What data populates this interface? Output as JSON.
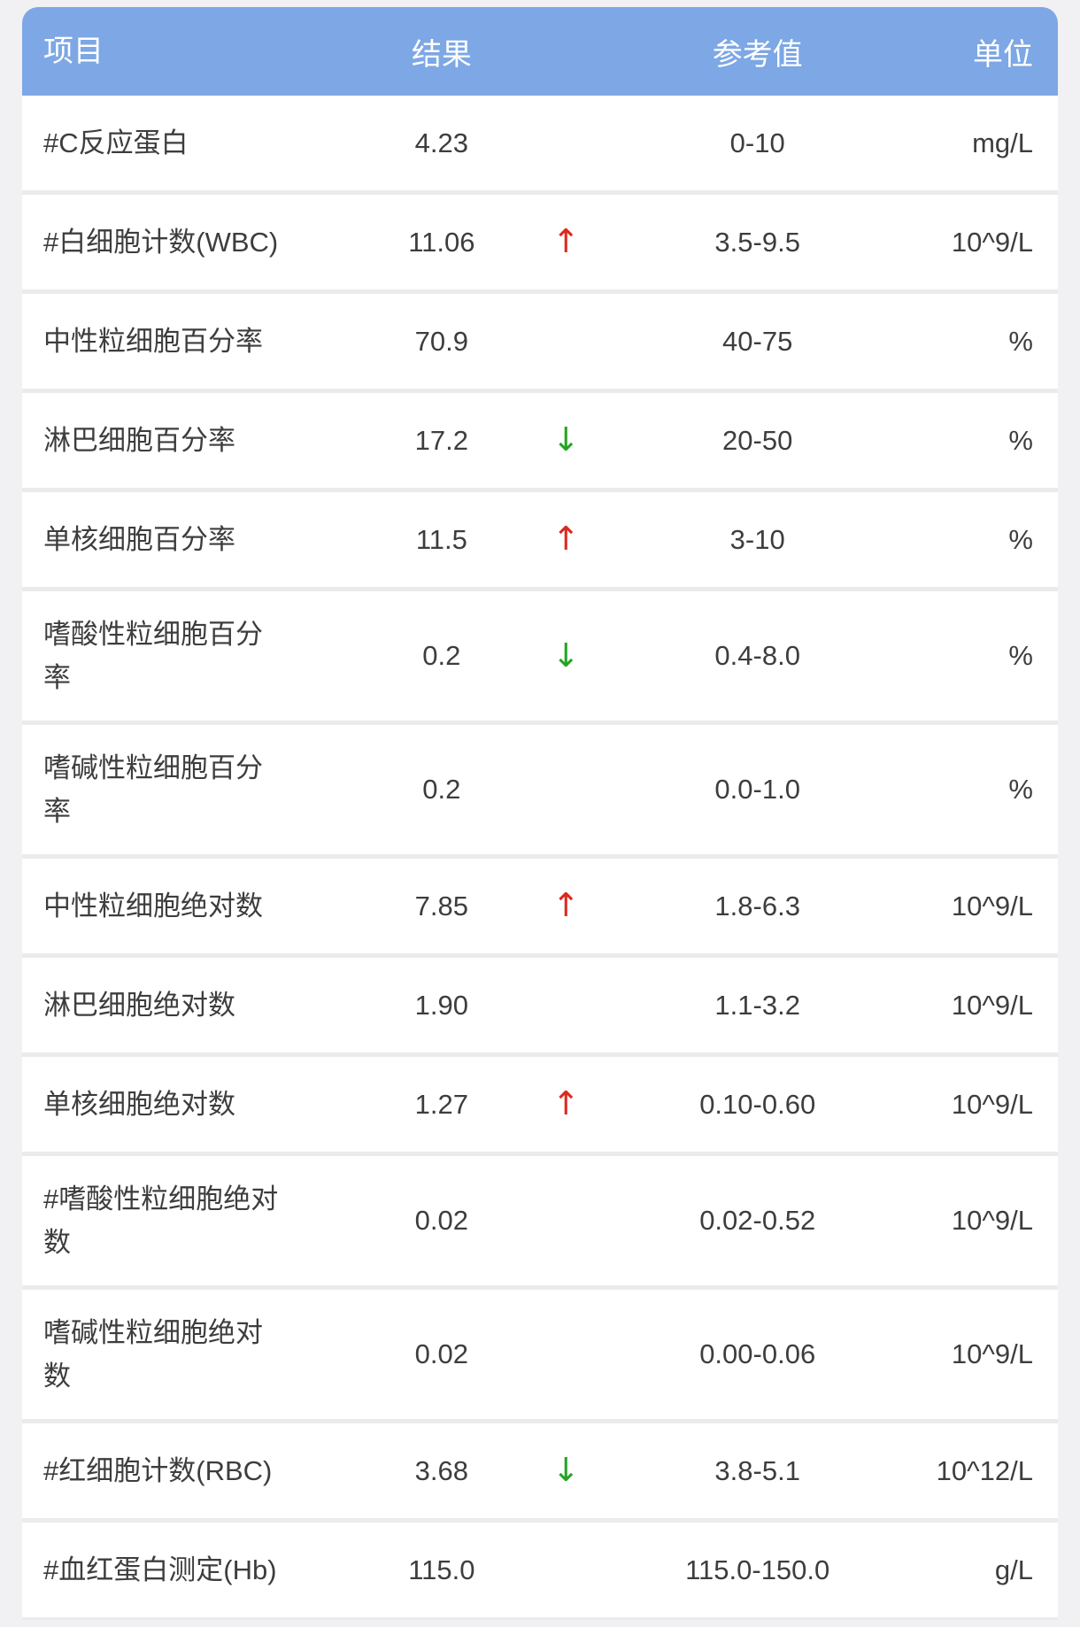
{
  "colors": {
    "header_bg": "#7da7e5",
    "header_text": "#ffffff",
    "row_text": "#3d3d3d",
    "divider": "#ebebeb",
    "up": "#dc291e",
    "down": "#23a523"
  },
  "icons": {
    "up": "↑",
    "down": "↓"
  },
  "table": {
    "columns": {
      "item": "项目",
      "result": "结果",
      "reference": "参考值",
      "unit": "单位"
    },
    "rows": [
      {
        "item": "#C反应蛋白",
        "result": "4.23",
        "flag": "",
        "reference": "0-10",
        "unit": "mg/L"
      },
      {
        "item": "#白细胞计数(WBC)",
        "result": "11.06",
        "flag": "up",
        "reference": "3.5-9.5",
        "unit": "10^9/L"
      },
      {
        "item": "中性粒细胞百分率",
        "result": "70.9",
        "flag": "",
        "reference": "40-75",
        "unit": "%"
      },
      {
        "item": "淋巴细胞百分率",
        "result": "17.2",
        "flag": "down",
        "reference": "20-50",
        "unit": "%"
      },
      {
        "item": "单核细胞百分率",
        "result": "11.5",
        "flag": "up",
        "reference": "3-10",
        "unit": "%"
      },
      {
        "item": "嗜酸性粒细胞百分\n率",
        "result": "0.2",
        "flag": "down",
        "reference": "0.4-8.0",
        "unit": "%",
        "twoLine": true
      },
      {
        "item": "嗜碱性粒细胞百分\n率",
        "result": "0.2",
        "flag": "",
        "reference": "0.0-1.0",
        "unit": "%",
        "twoLine": true
      },
      {
        "item": "中性粒细胞绝对数",
        "result": "7.85",
        "flag": "up",
        "reference": "1.8-6.3",
        "unit": "10^9/L"
      },
      {
        "item": "淋巴细胞绝对数",
        "result": "1.90",
        "flag": "",
        "reference": "1.1-3.2",
        "unit": "10^9/L"
      },
      {
        "item": "单核细胞绝对数",
        "result": "1.27",
        "flag": "up",
        "reference": "0.10-0.60",
        "unit": "10^9/L"
      },
      {
        "item": "#嗜酸性粒细胞绝对\n数",
        "result": "0.02",
        "flag": "",
        "reference": "0.02-0.52",
        "unit": "10^9/L",
        "twoLine": true
      },
      {
        "item": "嗜碱性粒细胞绝对\n数",
        "result": "0.02",
        "flag": "",
        "reference": "0.00-0.06",
        "unit": "10^9/L",
        "twoLine": true
      },
      {
        "item": "#红细胞计数(RBC)",
        "result": "3.68",
        "flag": "down",
        "reference": "3.8-5.1",
        "unit": "10^12/L"
      },
      {
        "item": "#血红蛋白测定(Hb)",
        "result": "115.0",
        "flag": "",
        "reference": "115.0-150.0",
        "unit": "g/L"
      }
    ]
  }
}
